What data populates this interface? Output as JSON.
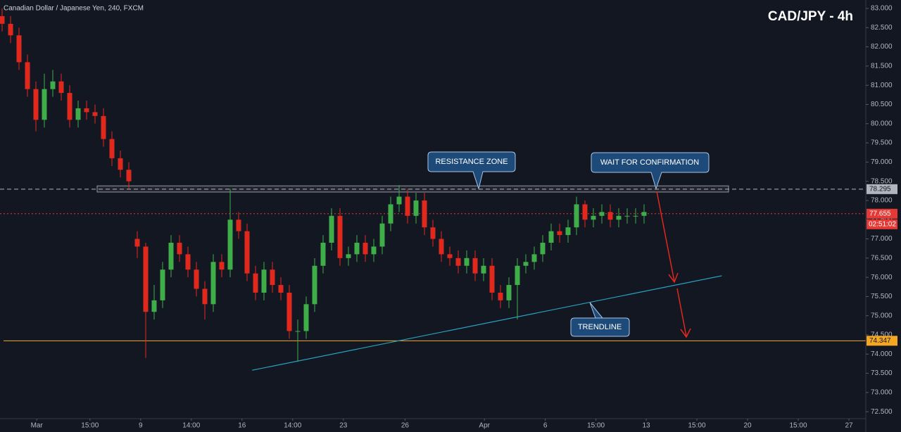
{
  "chart_data": {
    "type": "candlestick",
    "title": "Canadian Dollar / Japanese Yen, 240, FXCM",
    "headline": "CAD/JPY - 4h",
    "up_color": "#3fae49",
    "down_color": "#e0281d",
    "open": [
      82.8,
      82.6,
      82.3,
      81.6,
      80.9,
      80.1,
      80.9,
      81.1,
      80.8,
      80.1,
      80.4,
      80.3,
      80.2,
      79.6,
      79.1,
      78.8,
      77.0,
      76.8,
      75.1,
      75.4,
      76.2,
      76.9,
      76.6,
      76.2,
      75.7,
      75.3,
      76.4,
      76.2,
      77.5,
      77.2,
      76.1,
      75.6,
      76.2,
      75.8,
      75.6,
      74.6,
      74.6,
      75.3,
      76.3,
      76.9,
      77.6,
      76.5,
      76.6,
      76.9,
      76.6,
      76.8,
      77.4,
      77.9,
      78.1,
      77.6,
      78.0,
      77.3,
      77.0,
      76.6,
      76.5,
      76.3,
      76.5,
      76.1,
      76.3,
      75.6,
      75.4,
      75.8,
      76.3,
      76.4,
      76.6,
      76.9,
      77.2,
      77.1,
      77.3,
      77.9,
      77.5,
      77.6,
      77.7,
      77.5,
      77.6,
      77.6,
      77.6
    ],
    "high": [
      83.0,
      82.8,
      82.5,
      81.8,
      81.1,
      81.3,
      81.4,
      81.3,
      81.0,
      80.6,
      80.6,
      80.5,
      80.4,
      79.8,
      79.3,
      79.0,
      77.2,
      76.9,
      75.8,
      76.4,
      77.1,
      77.1,
      76.8,
      76.4,
      75.9,
      76.6,
      76.6,
      78.3,
      77.7,
      77.4,
      76.3,
      76.4,
      76.4,
      76.0,
      75.8,
      74.9,
      75.5,
      76.5,
      77.1,
      77.8,
      77.8,
      76.8,
      77.1,
      77.1,
      77.0,
      77.6,
      78.1,
      78.4,
      78.3,
      78.2,
      78.2,
      77.5,
      77.2,
      76.8,
      76.7,
      76.7,
      76.7,
      76.5,
      76.5,
      75.8,
      76.0,
      76.5,
      76.6,
      76.8,
      77.1,
      77.4,
      77.4,
      77.5,
      78.1,
      78.0,
      77.8,
      77.9,
      77.9,
      77.8,
      77.8,
      77.8,
      77.9
    ],
    "low": [
      82.4,
      82.1,
      81.4,
      80.7,
      79.8,
      79.9,
      80.7,
      80.6,
      79.9,
      79.9,
      80.1,
      80.0,
      79.4,
      78.9,
      78.6,
      78.3,
      76.5,
      73.9,
      74.9,
      75.2,
      76.0,
      76.4,
      76.0,
      75.5,
      74.9,
      75.1,
      76.0,
      76.0,
      77.0,
      75.9,
      75.4,
      75.4,
      75.6,
      75.4,
      74.4,
      73.8,
      74.4,
      75.1,
      76.1,
      76.7,
      76.3,
      76.3,
      76.4,
      76.4,
      76.4,
      76.6,
      77.2,
      77.7,
      77.4,
      77.4,
      77.1,
      76.8,
      76.4,
      76.3,
      76.1,
      76.1,
      75.9,
      75.9,
      75.4,
      75.2,
      75.2,
      74.9,
      76.1,
      76.2,
      76.4,
      76.7,
      76.9,
      76.9,
      77.1,
      77.3,
      77.3,
      77.4,
      77.3,
      77.3,
      77.4,
      77.4,
      77.4
    ],
    "close": [
      82.6,
      82.3,
      81.6,
      80.9,
      80.1,
      80.9,
      81.1,
      80.8,
      80.1,
      80.4,
      80.3,
      80.2,
      79.6,
      79.1,
      78.8,
      78.5,
      76.8,
      75.1,
      75.4,
      76.2,
      76.9,
      76.6,
      76.2,
      75.7,
      75.3,
      76.4,
      76.2,
      77.5,
      77.2,
      76.1,
      75.6,
      76.2,
      75.8,
      75.6,
      74.6,
      74.6,
      75.3,
      76.3,
      76.9,
      77.6,
      76.5,
      76.6,
      76.9,
      76.6,
      76.8,
      77.4,
      77.9,
      78.1,
      77.6,
      78.0,
      77.3,
      77.0,
      76.6,
      76.5,
      76.3,
      76.5,
      76.1,
      76.3,
      75.6,
      75.4,
      75.8,
      76.3,
      76.4,
      76.6,
      76.9,
      77.2,
      77.1,
      77.3,
      77.9,
      77.5,
      77.6,
      77.7,
      77.5,
      77.6,
      77.6,
      77.6,
      77.7
    ],
    "xlim": [
      -0.25,
      102.25
    ],
    "xticks": [
      {
        "value": 4.1,
        "label": "Mar"
      },
      {
        "value": 10.4,
        "label": "15:00"
      },
      {
        "value": 16.4,
        "label": "9"
      },
      {
        "value": 22.4,
        "label": "14:00"
      },
      {
        "value": 28.4,
        "label": "16"
      },
      {
        "value": 34.4,
        "label": "14:00"
      },
      {
        "value": 40.4,
        "label": "23"
      },
      {
        "value": 47.7,
        "label": "26"
      },
      {
        "value": 57.1,
        "label": "Apr"
      },
      {
        "value": 64.3,
        "label": "6"
      },
      {
        "value": 70.3,
        "label": "15:00"
      },
      {
        "value": 76.25,
        "label": "13"
      },
      {
        "value": 82.25,
        "label": "15:00"
      },
      {
        "value": 88.25,
        "label": "20"
      },
      {
        "value": 94.25,
        "label": "15:00"
      },
      {
        "value": 100.25,
        "label": "27"
      }
    ],
    "ylim": [
      72.32,
      83.22
    ],
    "yticks": [
      {
        "value": 72.5,
        "label": "72.500"
      },
      {
        "value": 73,
        "label": "73.000"
      },
      {
        "value": 73.5,
        "label": "73.500"
      },
      {
        "value": 74,
        "label": "74.000"
      },
      {
        "value": 74.5,
        "label": "74.500"
      },
      {
        "value": 75,
        "label": "75.000"
      },
      {
        "value": 75.5,
        "label": "75.500"
      },
      {
        "value": 76,
        "label": "76.000"
      },
      {
        "value": 76.5,
        "label": "76.500"
      },
      {
        "value": 77,
        "label": "77.000"
      },
      {
        "value": 77.5,
        "label": "77.500"
      },
      {
        "value": 78,
        "label": "78.000"
      },
      {
        "value": 78.5,
        "label": "78.500"
      },
      {
        "value": 79,
        "label": "79.000"
      },
      {
        "value": 79.5,
        "label": "79.500"
      },
      {
        "value": 80,
        "label": "80.000"
      },
      {
        "value": 80.5,
        "label": "80.500"
      },
      {
        "value": 81,
        "label": "81.000"
      },
      {
        "value": 81.5,
        "label": "81.500"
      },
      {
        "value": 82,
        "label": "82.000"
      },
      {
        "value": 82.5,
        "label": "82.500"
      },
      {
        "value": 83,
        "label": "83.000"
      }
    ],
    "levels": [
      {
        "value": 78.295,
        "color": "#b2b5be",
        "text_color": "#131722",
        "dash": "6 4"
      },
      {
        "value": 77.655,
        "color": "#e53935",
        "text_color": "#ffffff",
        "dash": "2 3"
      },
      {
        "value": 74.347,
        "color": "#f5a623",
        "text_color": "#131722",
        "dash": "none"
      }
    ],
    "countdown": "02:51:02",
    "zone": {
      "x": [
        11.25,
        86
      ],
      "y": [
        78.22,
        78.38
      ]
    },
    "trendline": {
      "x": [
        29.6,
        85.2
      ],
      "y": [
        73.58,
        76.04
      ],
      "color": "#29a3c4"
    },
    "callouts": [
      "RESISTANCE ZONE",
      "WAIT FOR CONFIRMATION",
      "TRENDLINE"
    ]
  }
}
